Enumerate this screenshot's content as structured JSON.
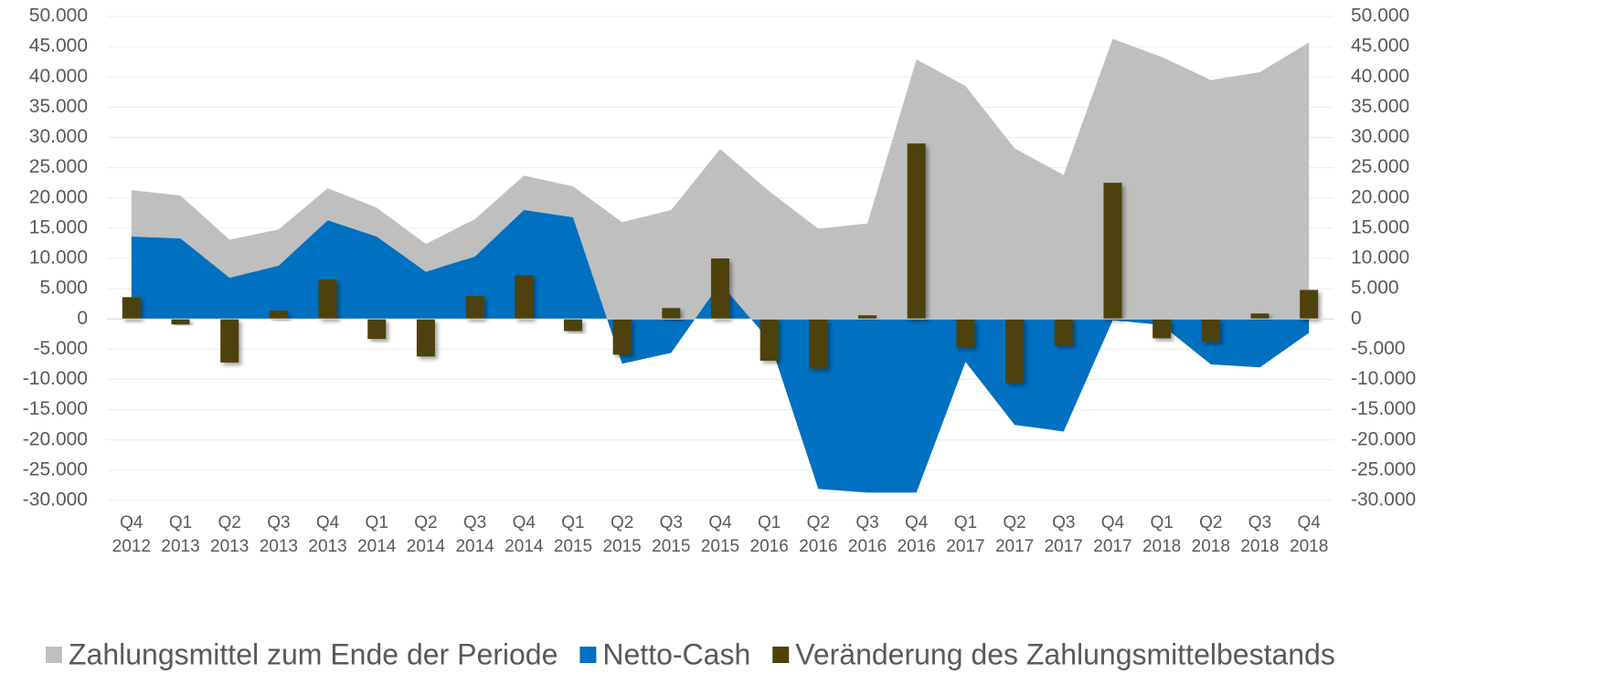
{
  "chart_data": {
    "type": "combo",
    "categories": [
      [
        "Q4",
        "2012"
      ],
      [
        "Q1",
        "2013"
      ],
      [
        "Q2",
        "2013"
      ],
      [
        "Q3",
        "2013"
      ],
      [
        "Q4",
        "2013"
      ],
      [
        "Q1",
        "2014"
      ],
      [
        "Q2",
        "2014"
      ],
      [
        "Q3",
        "2014"
      ],
      [
        "Q4",
        "2014"
      ],
      [
        "Q1",
        "2015"
      ],
      [
        "Q2",
        "2015"
      ],
      [
        "Q3",
        "2015"
      ],
      [
        "Q4",
        "2015"
      ],
      [
        "Q1",
        "2016"
      ],
      [
        "Q2",
        "2016"
      ],
      [
        "Q3",
        "2016"
      ],
      [
        "Q4",
        "2016"
      ],
      [
        "Q1",
        "2017"
      ],
      [
        "Q2",
        "2017"
      ],
      [
        "Q3",
        "2017"
      ],
      [
        "Q4",
        "2017"
      ],
      [
        "Q1",
        "2018"
      ],
      [
        "Q2",
        "2018"
      ],
      [
        "Q3",
        "2018"
      ],
      [
        "Q4",
        "2018"
      ]
    ],
    "series": [
      {
        "name": "Zahlungsmittel zum Ende der Periode",
        "type": "area",
        "color": "#bfbfbf",
        "values": [
          21300,
          20400,
          13100,
          14800,
          21600,
          18400,
          12400,
          16500,
          23700,
          21900,
          16000,
          18000,
          28100,
          21100,
          14900,
          15800,
          42900,
          38500,
          28200,
          23800,
          46300,
          43300,
          39500,
          40800,
          45700
        ]
      },
      {
        "name": "Netto-Cash",
        "type": "area",
        "color": "#0070c0",
        "values": [
          13600,
          13300,
          6800,
          8800,
          16300,
          13600,
          7800,
          10300,
          18000,
          16800,
          -7400,
          -5600,
          5900,
          -3500,
          -28100,
          -28700,
          -28700,
          -7100,
          -17500,
          -18600,
          -200,
          -1000,
          -7500,
          -8000,
          -2300
        ]
      },
      {
        "name": "Veränderung des Zahlungsmittelbestands",
        "type": "bar",
        "color": "#4d4309",
        "values": [
          3600,
          -900,
          -7200,
          1400,
          6500,
          -3300,
          -6200,
          3800,
          7200,
          -2000,
          -5900,
          1800,
          10000,
          -6900,
          -8200,
          600,
          29000,
          -4700,
          -10600,
          -4400,
          22500,
          -3200,
          -3800,
          900,
          4800
        ]
      }
    ],
    "ylim": [
      -30000,
      50000
    ],
    "yticks": [
      {
        "value": -30000,
        "label": "-30.000"
      },
      {
        "value": -25000,
        "label": "-25.000"
      },
      {
        "value": -20000,
        "label": "-20.000"
      },
      {
        "value": -15000,
        "label": "-15.000"
      },
      {
        "value": -10000,
        "label": "-10.000"
      },
      {
        "value": -5000,
        "label": "-5.000"
      },
      0,
      {
        "value": 5000,
        "label": "5.000"
      },
      {
        "value": 10000,
        "label": "10.000"
      },
      {
        "value": 15000,
        "label": "15.000"
      },
      {
        "value": 20000,
        "label": "20.000"
      },
      {
        "value": 25000,
        "label": "25.000"
      },
      {
        "value": 30000,
        "label": "30.000"
      },
      {
        "value": 35000,
        "label": "35.000"
      },
      {
        "value": 40000,
        "label": "40.000"
      },
      {
        "value": 45000,
        "label": "45.000"
      },
      {
        "value": 50000,
        "label": "50.000"
      }
    ],
    "y2lim": [
      -30000,
      50000
    ],
    "y2ticks": [
      {
        "value": -30000,
        "label": "-30.000"
      },
      {
        "value": -25000,
        "label": "-25.000"
      },
      {
        "value": -20000,
        "label": "-20.000"
      },
      {
        "value": -15000,
        "label": "-15.000"
      },
      {
        "value": -10000,
        "label": "-10.000"
      },
      {
        "value": -5000,
        "label": "-5.000"
      },
      0,
      {
        "value": 5000,
        "label": "5.000"
      },
      {
        "value": 10000,
        "label": "10.000"
      },
      {
        "value": 15000,
        "label": "15.000"
      },
      {
        "value": 20000,
        "label": "20.000"
      },
      {
        "value": 25000,
        "label": "25.000"
      },
      {
        "value": 30000,
        "label": "30.000"
      },
      {
        "value": 35000,
        "label": "35.000"
      },
      {
        "value": 40000,
        "label": "40.000"
      },
      {
        "value": 45000,
        "label": "45.000"
      },
      {
        "value": 50000,
        "label": "50.000"
      }
    ],
    "grid": true,
    "legend": "bottom"
  }
}
